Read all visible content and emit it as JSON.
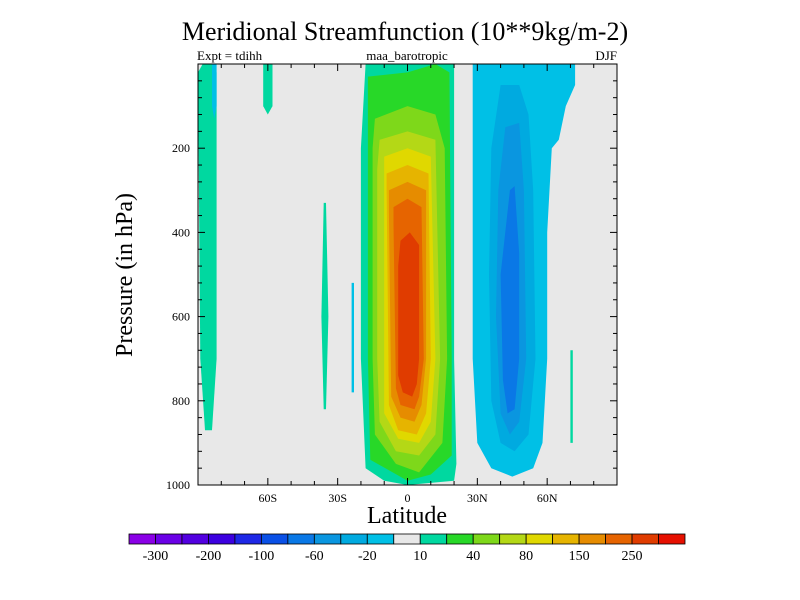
{
  "chart_data": {
    "type": "filled-contour",
    "title": "Meridional Streamfunction (10**9kg/m-2)",
    "subtitle_left": "Expt = tdihh",
    "subtitle_center": "maa_barotropic",
    "subtitle_right": "DJF",
    "xlabel": "Latitude",
    "ylabel": "Pressure (in hPa)",
    "xlim": [
      -90,
      90
    ],
    "ylim": [
      1000,
      0
    ],
    "x_ticks": [
      {
        "value": -60,
        "label": "60S"
      },
      {
        "value": -30,
        "label": "30S"
      },
      {
        "value": 0,
        "label": "0"
      },
      {
        "value": 30,
        "label": "30N"
      },
      {
        "value": 60,
        "label": "60N"
      }
    ],
    "y_ticks": [
      {
        "value": 200,
        "label": "200"
      },
      {
        "value": 400,
        "label": "400"
      },
      {
        "value": 600,
        "label": "600"
      },
      {
        "value": 800,
        "label": "800"
      },
      {
        "value": 1000,
        "label": "1000"
      }
    ],
    "missing_color": "#e8e8e8",
    "colorbar": {
      "colors": [
        "#8a00e6",
        "#6a00e6",
        "#5200e0",
        "#3c00e0",
        "#1e28e6",
        "#0a50e6",
        "#0a78e6",
        "#0a96e0",
        "#00aae0",
        "#00c0e6",
        "#e8e8e8",
        "#00d8a0",
        "#28d828",
        "#7ed81a",
        "#b4d816",
        "#e0d800",
        "#e6b400",
        "#e68c00",
        "#e66400",
        "#e03c00",
        "#e61000"
      ],
      "labels": [
        "-300",
        "-200",
        "-100",
        "-60",
        "-20",
        "10",
        "40",
        "80",
        "150",
        "250"
      ]
    },
    "regions": [
      {
        "name": "cell-sh-edge",
        "level": 10,
        "color": "#00d8a0",
        "points": [
          [
            -90,
            20
          ],
          [
            -88,
            0
          ],
          [
            -84,
            0
          ],
          [
            -82,
            20
          ],
          [
            -82,
            700
          ],
          [
            -84,
            870
          ],
          [
            -87,
            870
          ],
          [
            -89,
            700
          ]
        ]
      },
      {
        "name": "cell-sh-mid",
        "level": 10,
        "color": "#00d8a0",
        "points": [
          [
            -62,
            0
          ],
          [
            -58,
            0
          ],
          [
            -58,
            100
          ],
          [
            -60,
            120
          ],
          [
            -62,
            100
          ]
        ]
      },
      {
        "name": "cell-sh-strip",
        "level": 10,
        "color": "#00d8a0",
        "points": [
          [
            -36,
            330
          ],
          [
            -35,
            330
          ],
          [
            -34,
            600
          ],
          [
            -35,
            820
          ],
          [
            -36,
            820
          ],
          [
            -37,
            600
          ]
        ]
      },
      {
        "name": "cell-sh-blue",
        "level": -20,
        "color": "#00c0e6",
        "points": [
          [
            -84,
            0
          ],
          [
            -82,
            0
          ],
          [
            -82,
            100
          ],
          [
            -83,
            130
          ],
          [
            -84,
            100
          ]
        ]
      },
      {
        "name": "cell-hadley-10",
        "level": 10,
        "color": "#00d8a0",
        "points": [
          [
            -18,
            0
          ],
          [
            0,
            0
          ],
          [
            8,
            0
          ],
          [
            20,
            0
          ],
          [
            20,
            700
          ],
          [
            21,
            950
          ],
          [
            20,
            990
          ],
          [
            0,
            1000
          ],
          [
            -10,
            990
          ],
          [
            -18,
            960
          ],
          [
            -20,
            700
          ],
          [
            -20,
            200
          ]
        ]
      },
      {
        "name": "cell-hadley-40",
        "level": 40,
        "color": "#28d828",
        "points": [
          [
            -17,
            30
          ],
          [
            0,
            20
          ],
          [
            12,
            0
          ],
          [
            18,
            20
          ],
          [
            19,
            700
          ],
          [
            19,
            930
          ],
          [
            10,
            975
          ],
          [
            0,
            990
          ],
          [
            -16,
            940
          ],
          [
            -17,
            700
          ],
          [
            -17,
            200
          ]
        ]
      },
      {
        "name": "cell-hadley-80",
        "level": 80,
        "color": "#7ed81a",
        "points": [
          [
            -14,
            130
          ],
          [
            0,
            100
          ],
          [
            12,
            120
          ],
          [
            16,
            200
          ],
          [
            17,
            700
          ],
          [
            15,
            900
          ],
          [
            5,
            970
          ],
          [
            -5,
            950
          ],
          [
            -14,
            880
          ],
          [
            -15,
            700
          ],
          [
            -15,
            200
          ]
        ]
      },
      {
        "name": "cell-hadley-150",
        "level": 150,
        "color": "#b4d816",
        "points": [
          [
            -12,
            180
          ],
          [
            0,
            160
          ],
          [
            12,
            180
          ],
          [
            14,
            700
          ],
          [
            12,
            880
          ],
          [
            5,
            930
          ],
          [
            -5,
            920
          ],
          [
            -12,
            850
          ],
          [
            -13,
            700
          ],
          [
            -13,
            250
          ]
        ]
      },
      {
        "name": "cell-hadley-200",
        "level": 200,
        "color": "#e0d800",
        "points": [
          [
            -10,
            220
          ],
          [
            0,
            200
          ],
          [
            10,
            220
          ],
          [
            12,
            700
          ],
          [
            10,
            850
          ],
          [
            5,
            900
          ],
          [
            -4,
            890
          ],
          [
            -10,
            830
          ],
          [
            -10,
            250
          ]
        ]
      },
      {
        "name": "cell-hadley-250",
        "level": 250,
        "color": "#e6b400",
        "points": [
          [
            -9,
            260
          ],
          [
            0,
            240
          ],
          [
            9,
            260
          ],
          [
            10,
            700
          ],
          [
            8,
            830
          ],
          [
            4,
            880
          ],
          [
            -4,
            870
          ],
          [
            -8,
            810
          ],
          [
            -9,
            300
          ]
        ]
      },
      {
        "name": "cell-hadley-300",
        "level": 300,
        "color": "#e68c00",
        "points": [
          [
            -8,
            300
          ],
          [
            0,
            280
          ],
          [
            8,
            300
          ],
          [
            8,
            700
          ],
          [
            6,
            810
          ],
          [
            3,
            850
          ],
          [
            -3,
            840
          ],
          [
            -7,
            790
          ],
          [
            -8,
            350
          ]
        ]
      },
      {
        "name": "cell-hadley-350",
        "level": 350,
        "color": "#e66400",
        "points": [
          [
            -6,
            340
          ],
          [
            0,
            320
          ],
          [
            6,
            340
          ],
          [
            7,
            700
          ],
          [
            5,
            790
          ],
          [
            3,
            820
          ],
          [
            -3,
            810
          ],
          [
            -5,
            770
          ],
          [
            -6,
            380
          ]
        ]
      },
      {
        "name": "cell-hadley-400",
        "level": 400,
        "color": "#e03c00",
        "points": [
          [
            -3,
            420
          ],
          [
            1,
            400
          ],
          [
            5,
            430
          ],
          [
            5,
            700
          ],
          [
            4,
            760
          ],
          [
            2,
            790
          ],
          [
            -2,
            780
          ],
          [
            -4,
            740
          ],
          [
            -4,
            480
          ]
        ]
      },
      {
        "name": "cell-nh-blue-20",
        "level": -20,
        "color": "#00c0e6",
        "points": [
          [
            28,
            0
          ],
          [
            48,
            0
          ],
          [
            70,
            0
          ],
          [
            72,
            0
          ],
          [
            72,
            50
          ],
          [
            68,
            100
          ],
          [
            65,
            180
          ],
          [
            62,
            200
          ],
          [
            60,
            400
          ],
          [
            60,
            700
          ],
          [
            58,
            900
          ],
          [
            54,
            960
          ],
          [
            45,
            980
          ],
          [
            36,
            960
          ],
          [
            30,
            900
          ],
          [
            28,
            700
          ],
          [
            28,
            300
          ]
        ]
      },
      {
        "name": "cell-nh-blue-60",
        "level": -60,
        "color": "#00aae0",
        "points": [
          [
            40,
            50
          ],
          [
            48,
            50
          ],
          [
            52,
            120
          ],
          [
            54,
            300
          ],
          [
            55,
            700
          ],
          [
            52,
            880
          ],
          [
            46,
            920
          ],
          [
            40,
            900
          ],
          [
            36,
            800
          ],
          [
            35,
            500
          ],
          [
            36,
            200
          ]
        ]
      },
      {
        "name": "cell-nh-blue-100",
        "level": -100,
        "color": "#0a96e0",
        "points": [
          [
            42,
            150
          ],
          [
            48,
            140
          ],
          [
            50,
            300
          ],
          [
            51,
            700
          ],
          [
            48,
            850
          ],
          [
            44,
            880
          ],
          [
            40,
            830
          ],
          [
            38,
            600
          ],
          [
            39,
            300
          ]
        ]
      },
      {
        "name": "cell-nh-blue-140",
        "level": -140,
        "color": "#0a78e6",
        "points": [
          [
            44,
            300
          ],
          [
            46,
            290
          ],
          [
            48,
            450
          ],
          [
            48,
            700
          ],
          [
            46,
            820
          ],
          [
            43,
            830
          ],
          [
            41,
            750
          ],
          [
            40,
            500
          ]
        ]
      },
      {
        "name": "cell-sh-blue-strip",
        "level": -20,
        "color": "#00c0e6",
        "points": [
          [
            -24,
            520
          ],
          [
            -23,
            520
          ],
          [
            -23,
            780
          ],
          [
            -24,
            780
          ]
        ]
      },
      {
        "name": "cell-nh-edge",
        "level": 10,
        "color": "#00d8a0",
        "points": [
          [
            70,
            680
          ],
          [
            71,
            680
          ],
          [
            71,
            900
          ],
          [
            70,
            900
          ]
        ]
      }
    ]
  }
}
